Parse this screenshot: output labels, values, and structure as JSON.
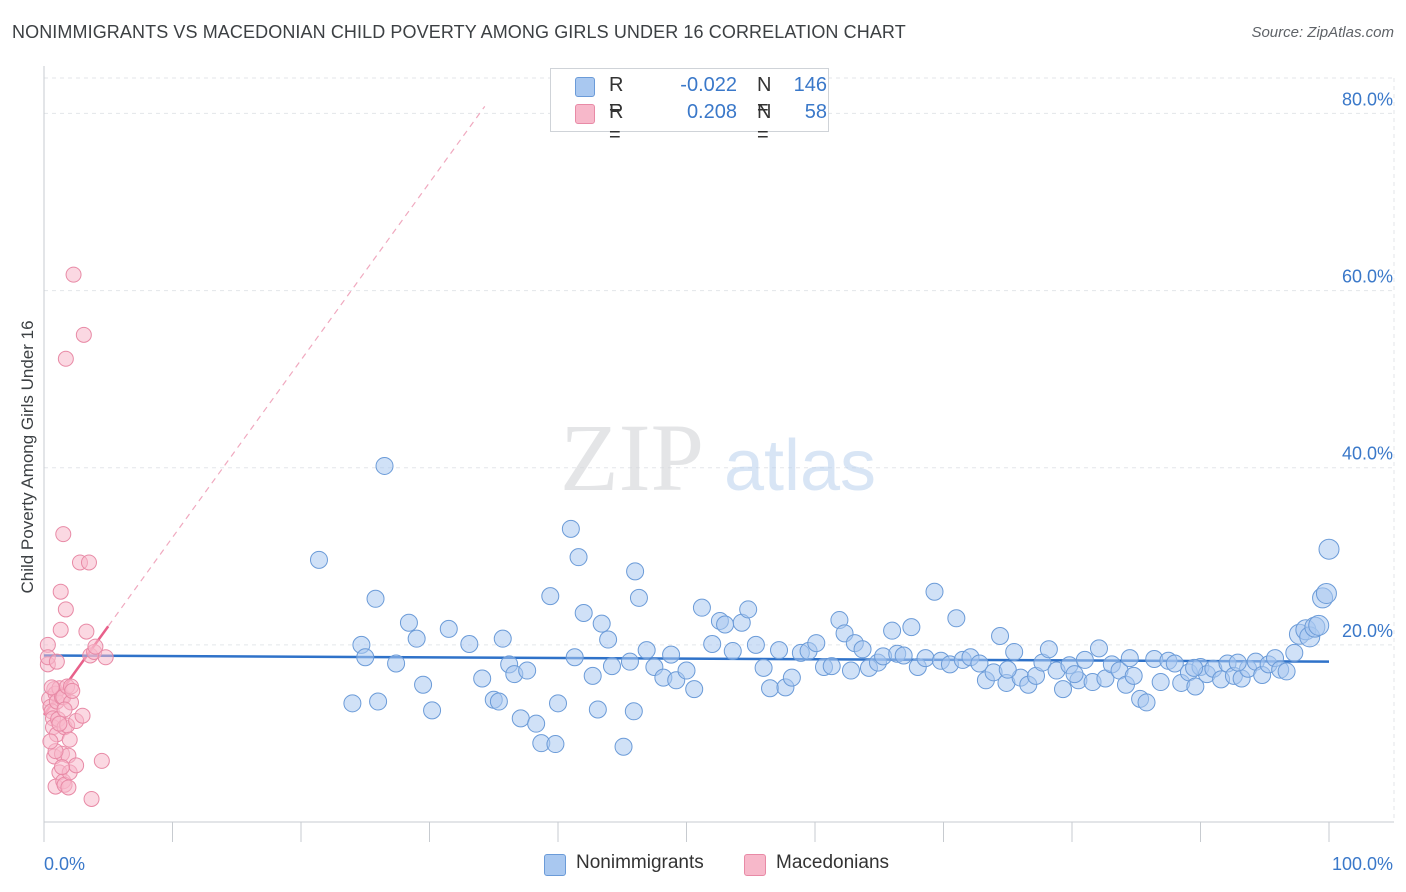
{
  "header": {
    "title": "NONIMMIGRANTS VS MACEDONIAN CHILD POVERTY AMONG GIRLS UNDER 16 CORRELATION CHART",
    "source": "Source: ZipAtlas.com"
  },
  "watermark": {
    "zip": "ZIP",
    "atlas": "atlas"
  },
  "legend": {
    "rows": [
      {
        "r_label": "R =",
        "r_value": "-0.022",
        "n_label": "N =",
        "n_value": "146",
        "color": "#a9c8f0"
      },
      {
        "r_label": "R =",
        "r_value": "0.208",
        "n_label": "N =",
        "n_value": "58",
        "color": "#f7b8ca"
      }
    ]
  },
  "bottom_legend": {
    "nonimmigrants": "Nonimmigrants",
    "macedonians": "Macedonians"
  },
  "chart_data": {
    "type": "scatter",
    "title": "NONIMMIGRANTS VS MACEDONIAN CHILD POVERTY AMONG GIRLS UNDER 16 CORRELATION CHART",
    "xlabel": "",
    "ylabel": "Child Poverty Among Girls Under 16",
    "xlim": [
      0,
      100
    ],
    "ylim": [
      0,
      84
    ],
    "x_tick_labels": [
      "0.0%",
      "100.0%"
    ],
    "y_tick_labels": [
      "20.0%",
      "40.0%",
      "60.0%",
      "80.0%"
    ],
    "y_ticks": [
      20,
      40,
      60,
      80
    ],
    "grid": true,
    "legend_position": "top-center",
    "colors": {
      "nonimmigrants_fill": "#a9c8f0",
      "nonimmigrants_stroke": "#6b9bd8",
      "nonimmigrants_line": "#2f72c9",
      "macedonians_fill": "#f7b8ca",
      "macedonians_stroke": "#e88aa6",
      "macedonians_line": "#e8608a",
      "tick_label": "#3a78c9"
    },
    "series": [
      {
        "name": "Nonimmigrants",
        "trend": {
          "x": [
            0,
            100
          ],
          "y": [
            18.8,
            18.1
          ]
        },
        "points": [
          [
            21.4,
            29.6
          ],
          [
            26.5,
            40.2
          ],
          [
            24.7,
            20.0
          ],
          [
            25.0,
            18.6
          ],
          [
            25.8,
            25.2
          ],
          [
            26.0,
            13.6
          ],
          [
            24.0,
            13.4
          ],
          [
            27.4,
            17.9
          ],
          [
            28.4,
            22.5
          ],
          [
            29.0,
            20.7
          ],
          [
            29.5,
            15.5
          ],
          [
            30.2,
            12.6
          ],
          [
            31.5,
            21.8
          ],
          [
            33.1,
            20.1
          ],
          [
            34.1,
            16.2
          ],
          [
            35.0,
            13.8
          ],
          [
            35.4,
            13.6
          ],
          [
            35.7,
            20.7
          ],
          [
            36.2,
            17.8
          ],
          [
            36.6,
            16.7
          ],
          [
            37.1,
            11.7
          ],
          [
            37.6,
            17.1
          ],
          [
            38.3,
            11.1
          ],
          [
            38.7,
            8.9
          ],
          [
            39.4,
            25.5
          ],
          [
            39.8,
            8.8
          ],
          [
            40.0,
            13.4
          ],
          [
            41.0,
            33.1
          ],
          [
            41.3,
            18.6
          ],
          [
            41.6,
            29.9
          ],
          [
            42.0,
            23.6
          ],
          [
            42.7,
            16.5
          ],
          [
            43.1,
            12.7
          ],
          [
            43.4,
            22.4
          ],
          [
            43.9,
            20.6
          ],
          [
            44.2,
            17.6
          ],
          [
            45.1,
            8.5
          ],
          [
            45.6,
            18.1
          ],
          [
            45.9,
            12.5
          ],
          [
            46.0,
            28.3
          ],
          [
            46.3,
            25.3
          ],
          [
            46.9,
            19.4
          ],
          [
            47.5,
            17.5
          ],
          [
            48.2,
            16.3
          ],
          [
            48.8,
            18.9
          ],
          [
            49.2,
            16.0
          ],
          [
            50.0,
            17.1
          ],
          [
            50.6,
            15.0
          ],
          [
            51.2,
            24.2
          ],
          [
            52.0,
            20.1
          ],
          [
            52.6,
            22.7
          ],
          [
            53.0,
            22.3
          ],
          [
            53.6,
            19.3
          ],
          [
            54.3,
            22.5
          ],
          [
            54.8,
            24.0
          ],
          [
            55.4,
            20.0
          ],
          [
            56.0,
            17.4
          ],
          [
            56.5,
            15.1
          ],
          [
            57.2,
            19.4
          ],
          [
            57.7,
            15.2
          ],
          [
            58.2,
            16.3
          ],
          [
            58.9,
            19.1
          ],
          [
            59.5,
            19.3
          ],
          [
            60.1,
            20.2
          ],
          [
            60.7,
            17.5
          ],
          [
            61.3,
            17.6
          ],
          [
            61.9,
            22.8
          ],
          [
            62.3,
            21.3
          ],
          [
            62.8,
            17.1
          ],
          [
            63.1,
            20.2
          ],
          [
            63.7,
            19.5
          ],
          [
            64.2,
            17.4
          ],
          [
            64.9,
            18.0
          ],
          [
            65.3,
            18.7
          ],
          [
            66.0,
            21.6
          ],
          [
            66.4,
            19.0
          ],
          [
            66.9,
            18.8
          ],
          [
            67.5,
            22.0
          ],
          [
            68.0,
            17.5
          ],
          [
            68.6,
            18.5
          ],
          [
            69.3,
            26.0
          ],
          [
            69.8,
            18.2
          ],
          [
            70.5,
            17.8
          ],
          [
            71.0,
            23.0
          ],
          [
            71.5,
            18.3
          ],
          [
            72.1,
            18.6
          ],
          [
            72.8,
            17.9
          ],
          [
            73.3,
            16.0
          ],
          [
            73.9,
            16.9
          ],
          [
            74.4,
            21.0
          ],
          [
            74.9,
            15.7
          ],
          [
            75.5,
            19.2
          ],
          [
            76.0,
            16.3
          ],
          [
            76.6,
            15.5
          ],
          [
            77.2,
            16.5
          ],
          [
            77.7,
            18.0
          ],
          [
            78.2,
            19.5
          ],
          [
            78.8,
            17.1
          ],
          [
            79.3,
            15.0
          ],
          [
            79.8,
            17.7
          ],
          [
            80.5,
            16.0
          ],
          [
            81.0,
            18.3
          ],
          [
            81.6,
            15.8
          ],
          [
            82.1,
            19.6
          ],
          [
            82.6,
            16.2
          ],
          [
            83.1,
            17.8
          ],
          [
            83.7,
            17.1
          ],
          [
            84.2,
            15.5
          ],
          [
            84.8,
            16.5
          ],
          [
            85.3,
            13.9
          ],
          [
            85.8,
            13.5
          ],
          [
            86.4,
            18.4
          ],
          [
            86.9,
            15.8
          ],
          [
            87.5,
            18.2
          ],
          [
            88.0,
            17.9
          ],
          [
            88.5,
            15.7
          ],
          [
            89.1,
            16.9
          ],
          [
            89.6,
            15.3
          ],
          [
            90.0,
            17.5
          ],
          [
            90.5,
            16.7
          ],
          [
            91.0,
            17.3
          ],
          [
            91.6,
            16.1
          ],
          [
            92.1,
            17.9
          ],
          [
            92.6,
            16.5
          ],
          [
            93.2,
            16.2
          ],
          [
            93.7,
            17.3
          ],
          [
            94.3,
            18.1
          ],
          [
            94.8,
            16.6
          ],
          [
            95.3,
            17.8
          ],
          [
            95.8,
            18.5
          ],
          [
            96.2,
            17.2
          ],
          [
            96.7,
            17.0
          ],
          [
            97.3,
            19.1
          ],
          [
            97.7,
            21.2
          ],
          [
            98.2,
            21.7
          ],
          [
            98.5,
            20.9
          ],
          [
            98.9,
            22.0
          ],
          [
            99.2,
            22.2
          ],
          [
            99.5,
            25.3
          ],
          [
            99.8,
            25.8
          ],
          [
            100.0,
            30.8
          ],
          [
            92.9,
            18.0
          ],
          [
            89.5,
            17.4
          ],
          [
            84.5,
            18.5
          ],
          [
            80.2,
            16.7
          ],
          [
            75.0,
            17.2
          ]
        ]
      },
      {
        "name": "Macedonians",
        "trend": {
          "x": [
            0,
            5
          ],
          "y": [
            12.1,
            22.1
          ]
        },
        "trend_extended": {
          "x": [
            0,
            34.3
          ],
          "y": [
            12.1,
            80.8
          ]
        },
        "points": [
          [
            0.3,
            17.8
          ],
          [
            0.3,
            20.0
          ],
          [
            0.3,
            18.6
          ],
          [
            0.4,
            13.9
          ],
          [
            0.5,
            13.0
          ],
          [
            0.6,
            12.5
          ],
          [
            0.7,
            11.7
          ],
          [
            0.7,
            10.7
          ],
          [
            0.8,
            15.0
          ],
          [
            0.8,
            7.4
          ],
          [
            0.9,
            4.0
          ],
          [
            0.9,
            14.5
          ],
          [
            1.0,
            9.9
          ],
          [
            1.0,
            13.6
          ],
          [
            1.1,
            11.6
          ],
          [
            1.2,
            15.1
          ],
          [
            1.2,
            5.6
          ],
          [
            1.3,
            26.0
          ],
          [
            1.3,
            21.7
          ],
          [
            1.4,
            14.1
          ],
          [
            1.4,
            7.7
          ],
          [
            1.5,
            4.6
          ],
          [
            1.5,
            32.5
          ],
          [
            1.5,
            14.1
          ],
          [
            1.6,
            10.7
          ],
          [
            1.6,
            4.2
          ],
          [
            1.7,
            52.3
          ],
          [
            1.7,
            24.0
          ],
          [
            1.8,
            15.3
          ],
          [
            1.8,
            10.9
          ],
          [
            1.9,
            3.9
          ],
          [
            1.9,
            7.5
          ],
          [
            2.0,
            9.3
          ],
          [
            2.0,
            5.6
          ],
          [
            2.1,
            15.3
          ],
          [
            2.1,
            13.5
          ],
          [
            2.3,
            61.8
          ],
          [
            2.5,
            11.4
          ],
          [
            2.5,
            6.4
          ],
          [
            2.8,
            29.3
          ],
          [
            3.0,
            12.0
          ],
          [
            3.1,
            55.0
          ],
          [
            3.3,
            21.5
          ],
          [
            3.5,
            29.3
          ],
          [
            3.6,
            18.8
          ],
          [
            3.7,
            2.6
          ],
          [
            3.9,
            19.2
          ],
          [
            4.0,
            19.8
          ],
          [
            4.5,
            6.9
          ],
          [
            4.8,
            18.6
          ],
          [
            1.0,
            18.1
          ],
          [
            0.6,
            15.2
          ],
          [
            1.2,
            11.1
          ],
          [
            0.9,
            8.0
          ],
          [
            1.4,
            6.2
          ],
          [
            2.2,
            14.8
          ],
          [
            0.5,
            9.1
          ],
          [
            1.6,
            12.7
          ]
        ]
      }
    ]
  }
}
